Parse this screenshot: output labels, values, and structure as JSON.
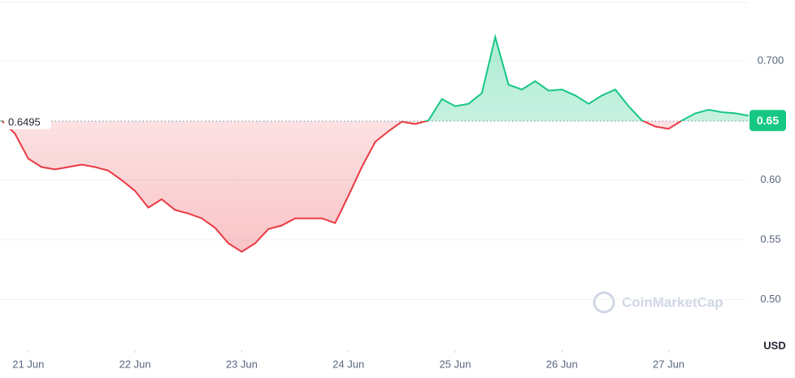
{
  "chart_data": {
    "type": "line",
    "unit": "USD",
    "watermark": "CoinMarketCap",
    "baseline": 0.6495,
    "current_price": 0.65,
    "up_color": "#16c784",
    "down_color": "#ea3943",
    "values": [
      0.65,
      0.639,
      0.618,
      0.611,
      0.609,
      0.611,
      0.613,
      0.611,
      0.608,
      0.6,
      0.591,
      0.577,
      0.584,
      0.575,
      0.572,
      0.568,
      0.56,
      0.547,
      0.54,
      0.547,
      0.559,
      0.562,
      0.568,
      0.568,
      0.568,
      0.564,
      0.587,
      0.611,
      0.632,
      0.641,
      0.649,
      0.647,
      0.65,
      0.668,
      0.662,
      0.664,
      0.673,
      0.72,
      0.68,
      0.676,
      0.683,
      0.675,
      0.676,
      0.671,
      0.664,
      0.671,
      0.676,
      0.662,
      0.65,
      0.645,
      0.643,
      0.65,
      0.656,
      0.659,
      0.657,
      0.656,
      0.654
    ],
    "xlim": [
      0,
      56
    ],
    "xticks": [
      {
        "value": 2,
        "label": "21 Jun"
      },
      {
        "value": 10,
        "label": "22 Jun"
      },
      {
        "value": 18,
        "label": "23 Jun"
      },
      {
        "value": 26,
        "label": "24 Jun"
      },
      {
        "value": 34,
        "label": "25 Jun"
      },
      {
        "value": 42,
        "label": "26 Jun"
      },
      {
        "value": 50,
        "label": "27 Jun"
      }
    ],
    "ylim": [
      0.458,
      0.751
    ],
    "yticks": [
      {
        "value": 0.7,
        "label": "0.700"
      },
      {
        "value": 0.6,
        "label": "0.60"
      },
      0.55,
      {
        "value": 0.5,
        "label": "0.50"
      }
    ],
    "grid": true
  }
}
